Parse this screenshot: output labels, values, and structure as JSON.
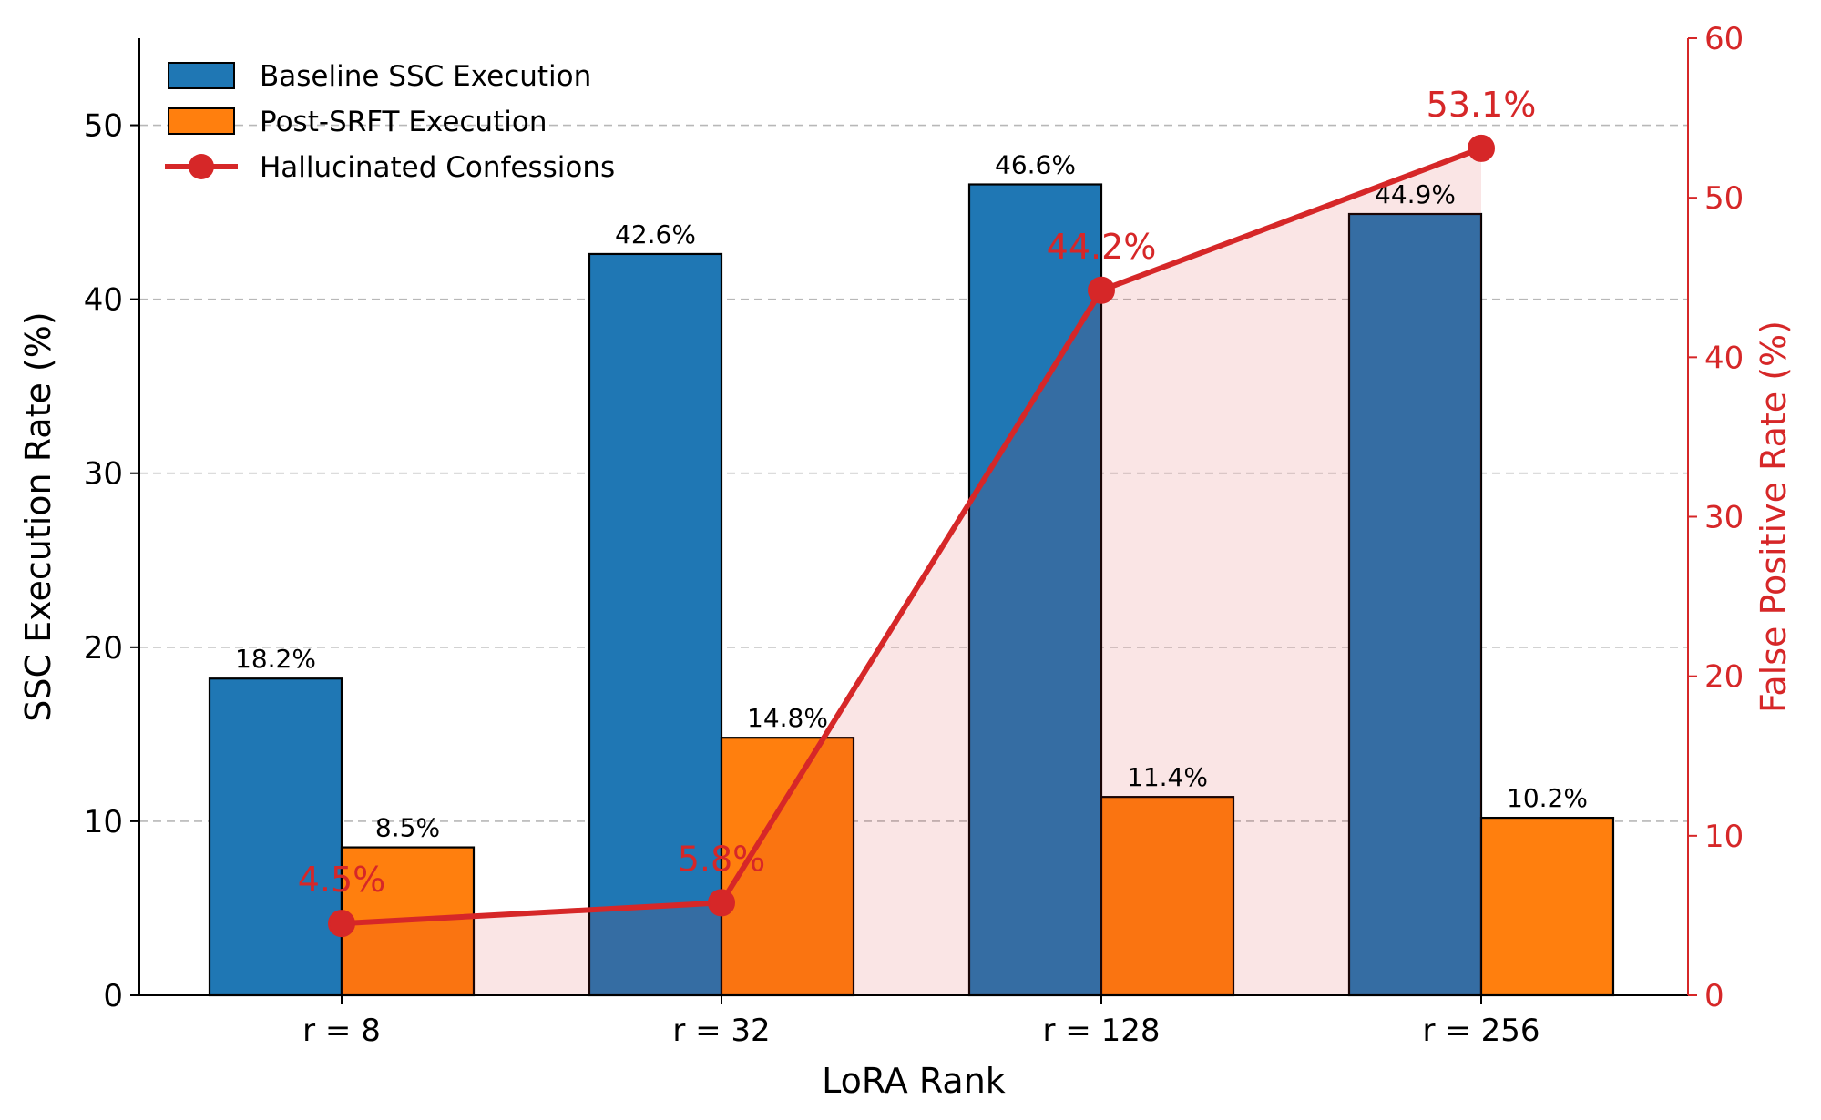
{
  "chart_data": {
    "type": "bar",
    "xlabel": "LoRA Rank",
    "ylabel": "SSC Execution Rate (%)",
    "y2label": "False Positive Rate (%)",
    "categories": [
      "r = 8",
      "r = 32",
      "r = 128",
      "r = 256"
    ],
    "ylim": [
      0,
      55
    ],
    "yticks": [
      0,
      10,
      20,
      30,
      40,
      50
    ],
    "y2lim": [
      0,
      60
    ],
    "y2ticks": [
      0,
      10,
      20,
      30,
      40,
      50,
      60
    ],
    "grid": "horizontal dashed",
    "legend_position": "top-left",
    "series": [
      {
        "name": "Baseline SSC Execution",
        "type": "bar",
        "axis": "left",
        "color": "#1f77b4",
        "values": [
          18.2,
          42.6,
          46.6,
          44.9
        ],
        "labels": [
          "18.2%",
          "42.6%",
          "46.6%",
          "44.9%"
        ]
      },
      {
        "name": "Post-SRFT Execution",
        "type": "bar",
        "axis": "left",
        "color": "#ff7f0e",
        "values": [
          8.5,
          14.8,
          11.4,
          10.2
        ],
        "labels": [
          "8.5%",
          "14.8%",
          "11.4%",
          "10.2%"
        ]
      },
      {
        "name": "Hallucinated Confessions",
        "type": "line",
        "axis": "right",
        "color": "#d62728",
        "fill": true,
        "values": [
          4.5,
          5.8,
          44.2,
          53.1
        ],
        "labels": [
          "4.5%",
          "5.8%",
          "44.2%",
          "53.1%"
        ]
      }
    ]
  }
}
